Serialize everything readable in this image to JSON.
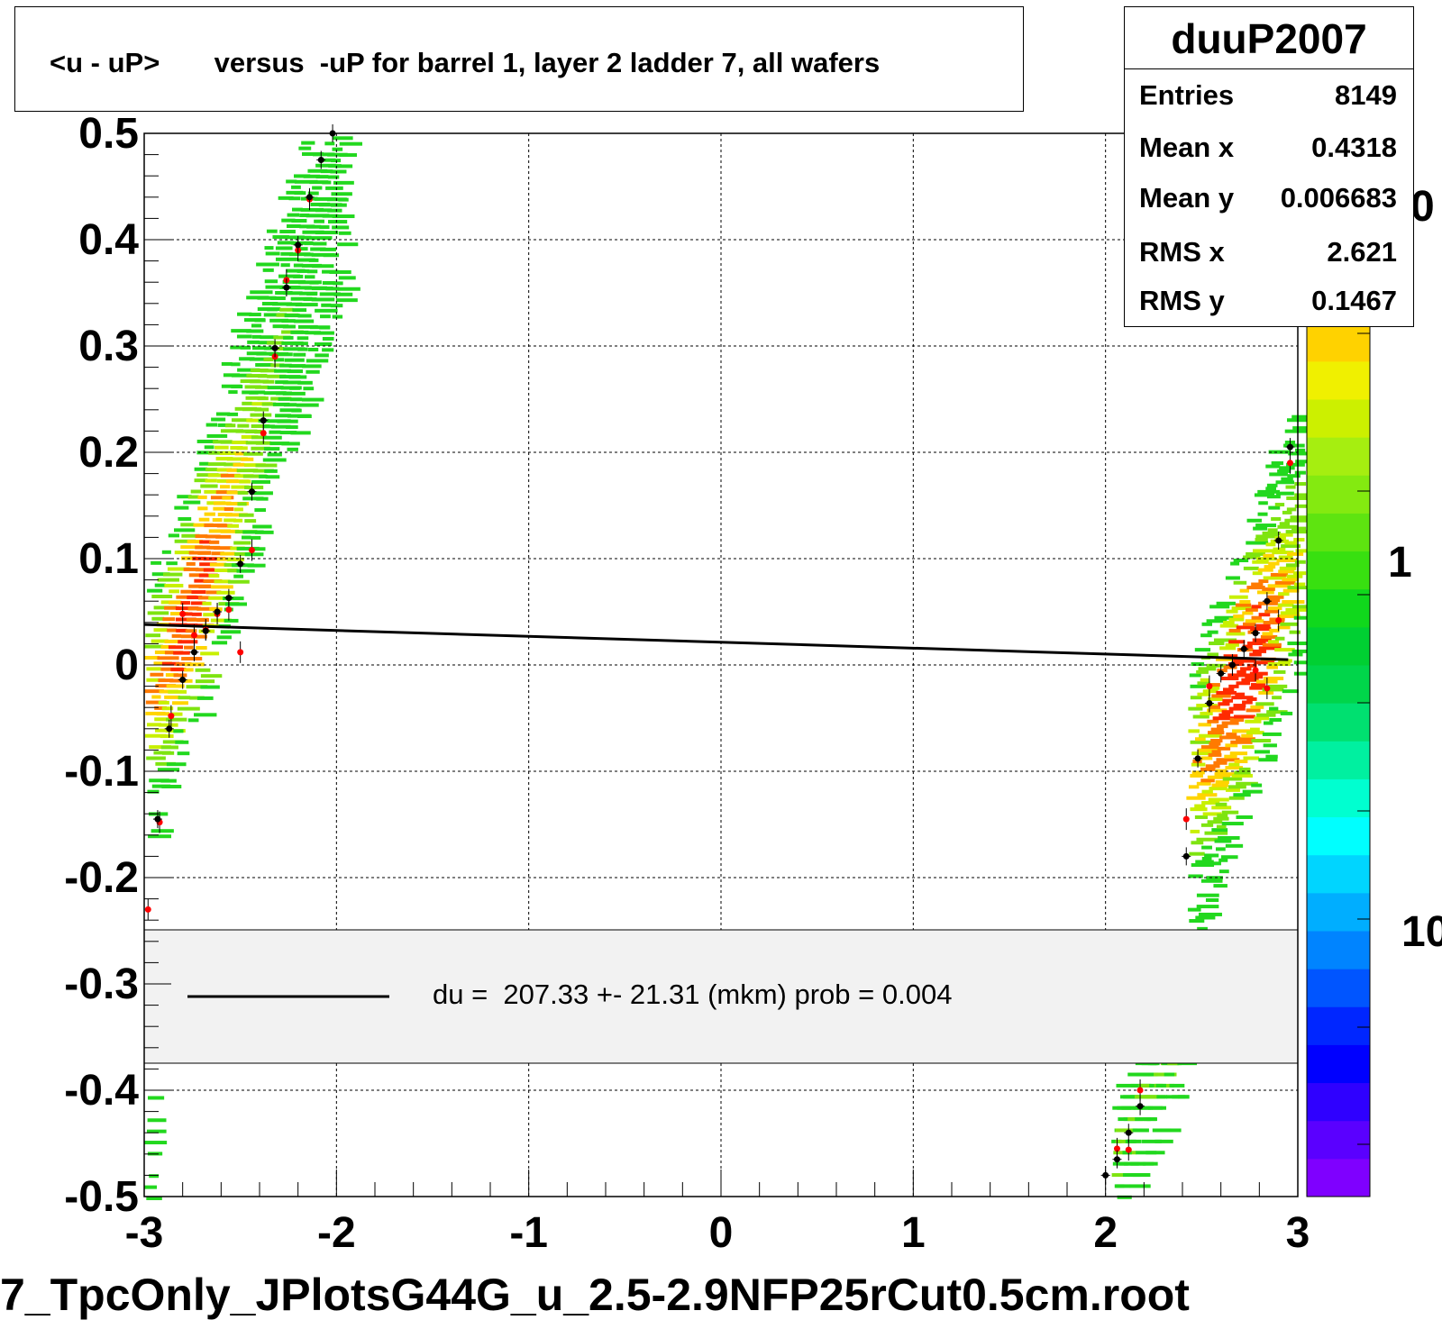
{
  "title": "<u - uP>       versus  -uP for barrel 1, layer 2 ladder 7, all wafers",
  "stats": {
    "name": "duuP2007",
    "rows": [
      {
        "label": "Entries",
        "value": "8149"
      },
      {
        "label": "Mean x",
        "value": "0.4318"
      },
      {
        "label": "Mean y",
        "value": "0.006683"
      },
      {
        "label": "RMS x",
        "value": "2.621"
      },
      {
        "label": "RMS y",
        "value": "0.1467"
      }
    ]
  },
  "legend_text": "du =  207.33 +- 21.31 (mkm) prob = 0.004",
  "file_title": "7_TpcOnly_JPlotsG44G_u_2.5-2.9NFP25rCut0.5cm.root",
  "colorbar": {
    "labels": [
      "0",
      "1",
      "10"
    ],
    "colors": [
      "#7f00ff",
      "#5a00ff",
      "#2f00ff",
      "#0000ff",
      "#0026ff",
      "#0055ff",
      "#0084ff",
      "#00aeff",
      "#00d5ff",
      "#00ffff",
      "#00ffd0",
      "#00f0a0",
      "#00e070",
      "#00d54a",
      "#00d032",
      "#10d81c",
      "#38e010",
      "#5ee410",
      "#84ea10",
      "#a6ee10",
      "#ccf000",
      "#f0f000",
      "#ffd200",
      "#ffaa00",
      "#ff7700",
      "#ff4400",
      "#ff1a00",
      "#ff0000"
    ]
  },
  "chart_data": {
    "type": "heatmap",
    "title": "<u - uP>       versus  -uP for barrel 1, layer 2 ladder 7, all wafers",
    "xlabel": "",
    "ylabel": "",
    "xlim": [
      -3,
      3
    ],
    "ylim": [
      -0.5,
      0.5
    ],
    "x_ticks": [
      "-3",
      "-2",
      "-1",
      "0",
      "1",
      "2",
      "3"
    ],
    "y_ticks": [
      "0.5",
      "0.4",
      "0.3",
      "0.2",
      "0.1",
      "0",
      "-0.1",
      "-0.2",
      "-0.3",
      "-0.4",
      "-0.5"
    ],
    "grid": true,
    "fit_line": {
      "x": [
        -3,
        2.95
      ],
      "y": [
        0.038,
        0.005
      ]
    },
    "profile_black": [
      {
        "x": -2.93,
        "y": -0.145
      },
      {
        "x": -2.87,
        "y": -0.06
      },
      {
        "x": -2.8,
        "y": -0.014
      },
      {
        "x": -2.74,
        "y": 0.012
      },
      {
        "x": -2.68,
        "y": 0.032
      },
      {
        "x": -2.62,
        "y": 0.05
      },
      {
        "x": -2.56,
        "y": 0.063
      },
      {
        "x": -2.5,
        "y": 0.095
      },
      {
        "x": -2.44,
        "y": 0.163
      },
      {
        "x": -2.38,
        "y": 0.23
      },
      {
        "x": -2.32,
        "y": 0.298
      },
      {
        "x": -2.26,
        "y": 0.355
      },
      {
        "x": -2.2,
        "y": 0.395
      },
      {
        "x": -2.14,
        "y": 0.44
      },
      {
        "x": -2.08,
        "y": 0.475
      },
      {
        "x": -2.02,
        "y": 0.5
      },
      {
        "x": 2.0,
        "y": -0.48
      },
      {
        "x": 2.06,
        "y": -0.465
      },
      {
        "x": 2.12,
        "y": -0.44
      },
      {
        "x": 2.18,
        "y": -0.415
      },
      {
        "x": 2.42,
        "y": -0.18
      },
      {
        "x": 2.48,
        "y": -0.088
      },
      {
        "x": 2.54,
        "y": -0.036
      },
      {
        "x": 2.6,
        "y": -0.008
      },
      {
        "x": 2.66,
        "y": 0.0
      },
      {
        "x": 2.72,
        "y": 0.015
      },
      {
        "x": 2.78,
        "y": 0.03
      },
      {
        "x": 2.84,
        "y": 0.06
      },
      {
        "x": 2.9,
        "y": 0.117
      },
      {
        "x": 2.96,
        "y": 0.205
      }
    ],
    "profile_red": [
      {
        "x": -2.98,
        "y": -0.23
      },
      {
        "x": -2.92,
        "y": -0.148
      },
      {
        "x": -2.86,
        "y": -0.048
      },
      {
        "x": -2.8,
        "y": 0.048
      },
      {
        "x": -2.74,
        "y": 0.028
      },
      {
        "x": -2.68,
        "y": 0.033
      },
      {
        "x": -2.62,
        "y": 0.048
      },
      {
        "x": -2.56,
        "y": 0.052
      },
      {
        "x": -2.5,
        "y": 0.012
      },
      {
        "x": -2.44,
        "y": 0.108
      },
      {
        "x": -2.38,
        "y": 0.218
      },
      {
        "x": -2.32,
        "y": 0.29
      },
      {
        "x": -2.26,
        "y": 0.362
      },
      {
        "x": -2.2,
        "y": 0.39
      },
      {
        "x": -2.14,
        "y": 0.438
      },
      {
        "x": 2.06,
        "y": -0.455
      },
      {
        "x": 2.12,
        "y": -0.456
      },
      {
        "x": 2.18,
        "y": -0.4
      },
      {
        "x": 2.42,
        "y": -0.145
      },
      {
        "x": 2.54,
        "y": -0.02
      },
      {
        "x": 2.66,
        "y": 0.0
      },
      {
        "x": 2.78,
        "y": -0.005
      },
      {
        "x": 2.84,
        "y": -0.022
      },
      {
        "x": 2.9,
        "y": 0.042
      },
      {
        "x": 2.96,
        "y": 0.19
      }
    ]
  }
}
